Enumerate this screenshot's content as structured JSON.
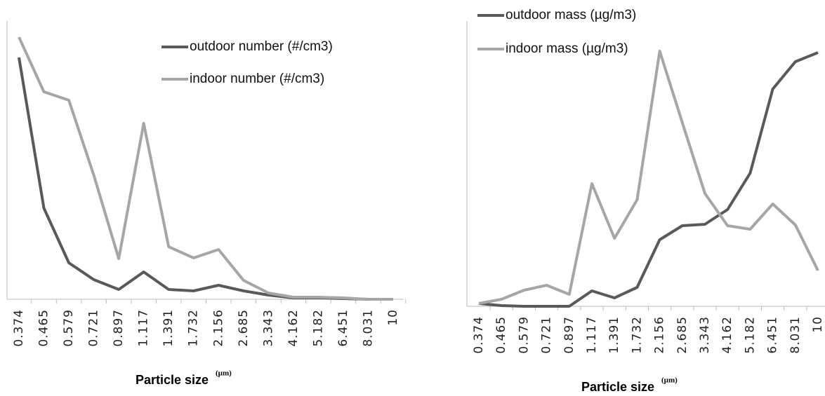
{
  "chart_data": [
    {
      "type": "line",
      "categories": [
        "0.374",
        "0.465",
        "0.579",
        "0.721",
        "0.897",
        "1.117",
        "1.391",
        "1.732",
        "2.156",
        "2.685",
        "3.343",
        "4.162",
        "5.182",
        "6.451",
        "8.031",
        "10"
      ],
      "xlabel": "Particle size",
      "xlabel_unit": "(µm)",
      "ylim": [
        0,
        400
      ],
      "legend": "top-right",
      "series": [
        {
          "name": "outdoor number (#/cm3)",
          "color": "#595959",
          "values": [
            345,
            130,
            52,
            28,
            14,
            39,
            14,
            12,
            20,
            12,
            6,
            2,
            2,
            1,
            0,
            0
          ]
        },
        {
          "name": "indoor number (#/cm3)",
          "color": "#a6a6a6",
          "values": [
            374,
            296,
            284,
            177,
            58,
            251,
            75,
            59,
            71,
            27,
            9,
            3,
            3,
            2,
            0,
            0
          ]
        }
      ]
    },
    {
      "type": "line",
      "categories": [
        "0.374",
        "0.465",
        "0.579",
        "0.721",
        "0.897",
        "1.117",
        "1.391",
        "1.732",
        "2.156",
        "2.685",
        "3.343",
        "4.162",
        "5.182",
        "6.451",
        "8.031",
        "10"
      ],
      "xlabel": "Particle size",
      "xlabel_unit": "(µm)",
      "ylim": [
        0,
        400
      ],
      "legend": "top-left",
      "series": [
        {
          "name": "outdoor mass (µg/m3)",
          "color": "#595959",
          "values": [
            4,
            1,
            0,
            0,
            0,
            22,
            12,
            27,
            95,
            115,
            117,
            138,
            190,
            310,
            349,
            362
          ]
        },
        {
          "name": "indoor mass (µg/m3)",
          "color": "#a6a6a6",
          "values": [
            4,
            10,
            23,
            30,
            17,
            175,
            97,
            152,
            364,
            262,
            161,
            115,
            110,
            146,
            116,
            51
          ]
        }
      ]
    }
  ]
}
